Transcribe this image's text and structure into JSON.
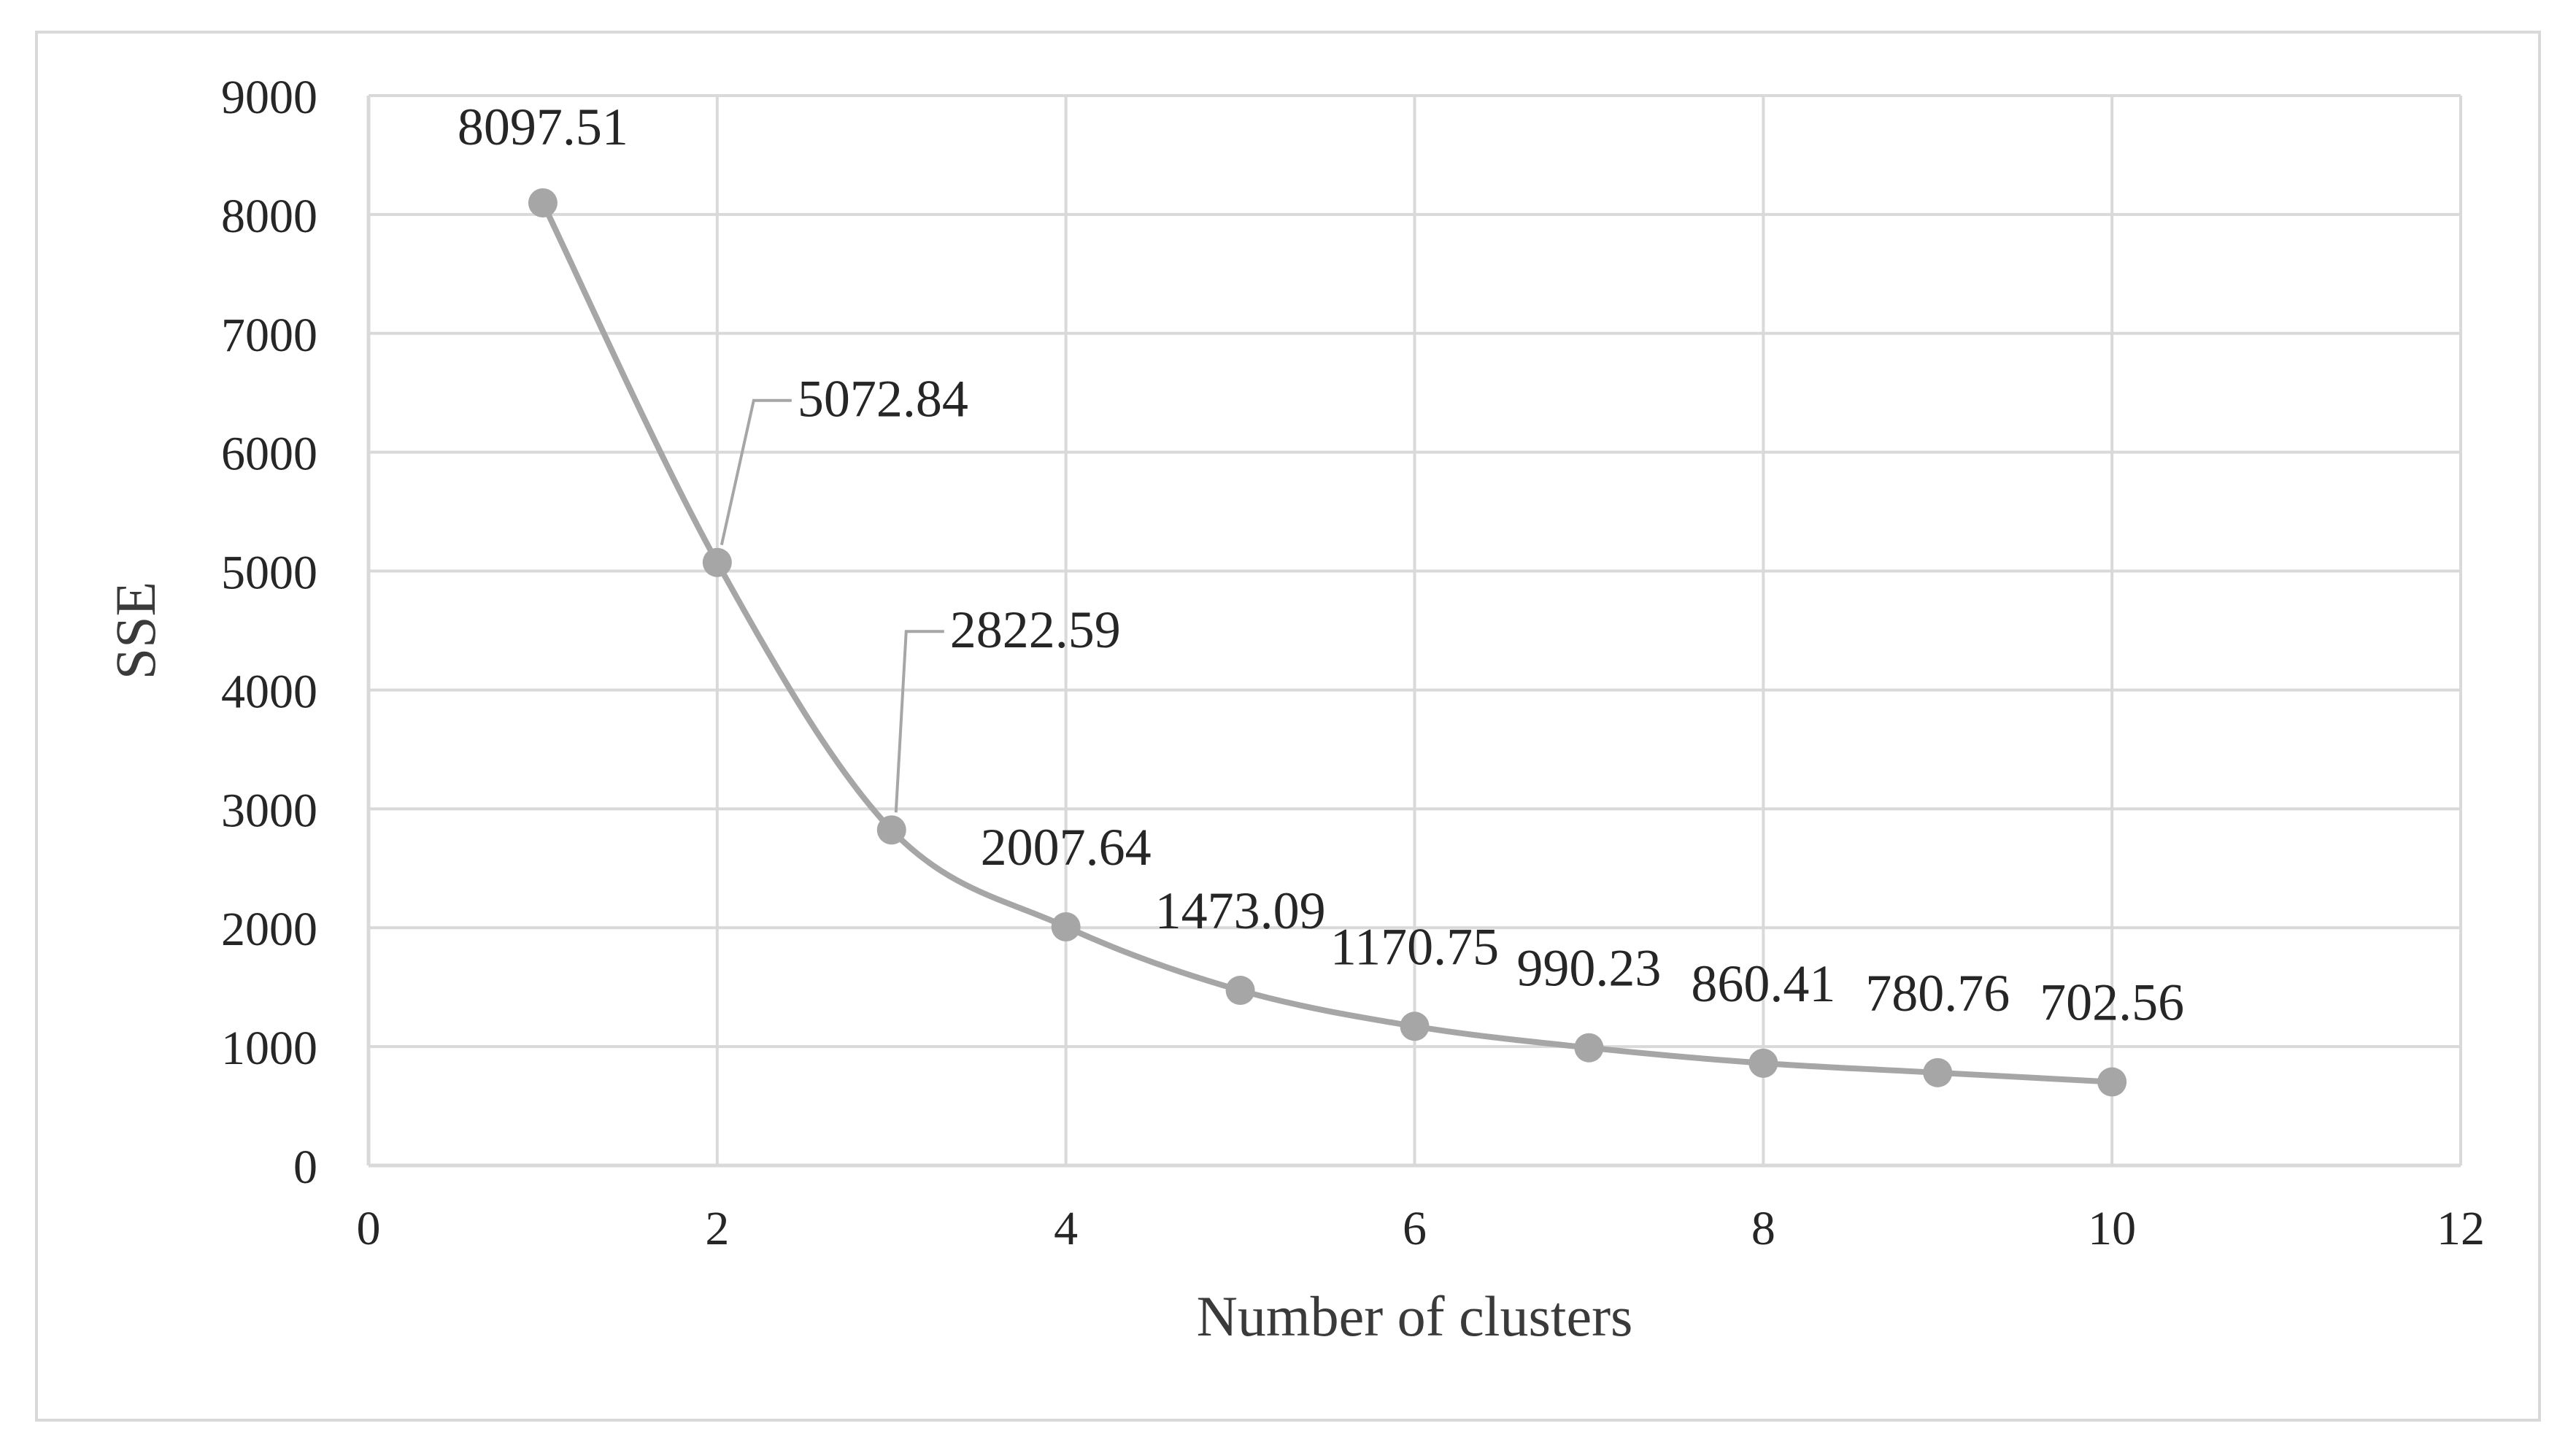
{
  "chart_data": {
    "type": "scatter",
    "title": "",
    "xlabel": "Number of clusters",
    "ylabel": "SSE",
    "xlim": [
      0,
      12
    ],
    "ylim": [
      0,
      9000
    ],
    "x_ticks": [
      "0",
      "2",
      "4",
      "6",
      "8",
      "10",
      "12"
    ],
    "y_ticks": [
      "0",
      "1000",
      "2000",
      "3000",
      "4000",
      "5000",
      "6000",
      "7000",
      "8000",
      "9000"
    ],
    "grid": true,
    "legend": "none",
    "line_style": "smoothed",
    "series": [
      {
        "x": [
          1,
          2,
          3,
          4,
          5,
          6,
          7,
          8,
          9,
          10
        ],
        "values": [
          8097.51,
          5072.84,
          2822.59,
          2007.64,
          1473.09,
          1170.75,
          990.23,
          860.41,
          780.76,
          702.56
        ],
        "labels": [
          "8097.51",
          "5072.84",
          "2822.59",
          "2007.64",
          "1473.09",
          "1170.75",
          "990.23",
          "860.41",
          "780.76",
          "702.56"
        ],
        "color": "#a6a6a6"
      }
    ],
    "colors": {
      "series": "#a6a6a6",
      "grid": "#d9d9d9",
      "frame": "#d9d9d9",
      "text": "#262626"
    }
  }
}
